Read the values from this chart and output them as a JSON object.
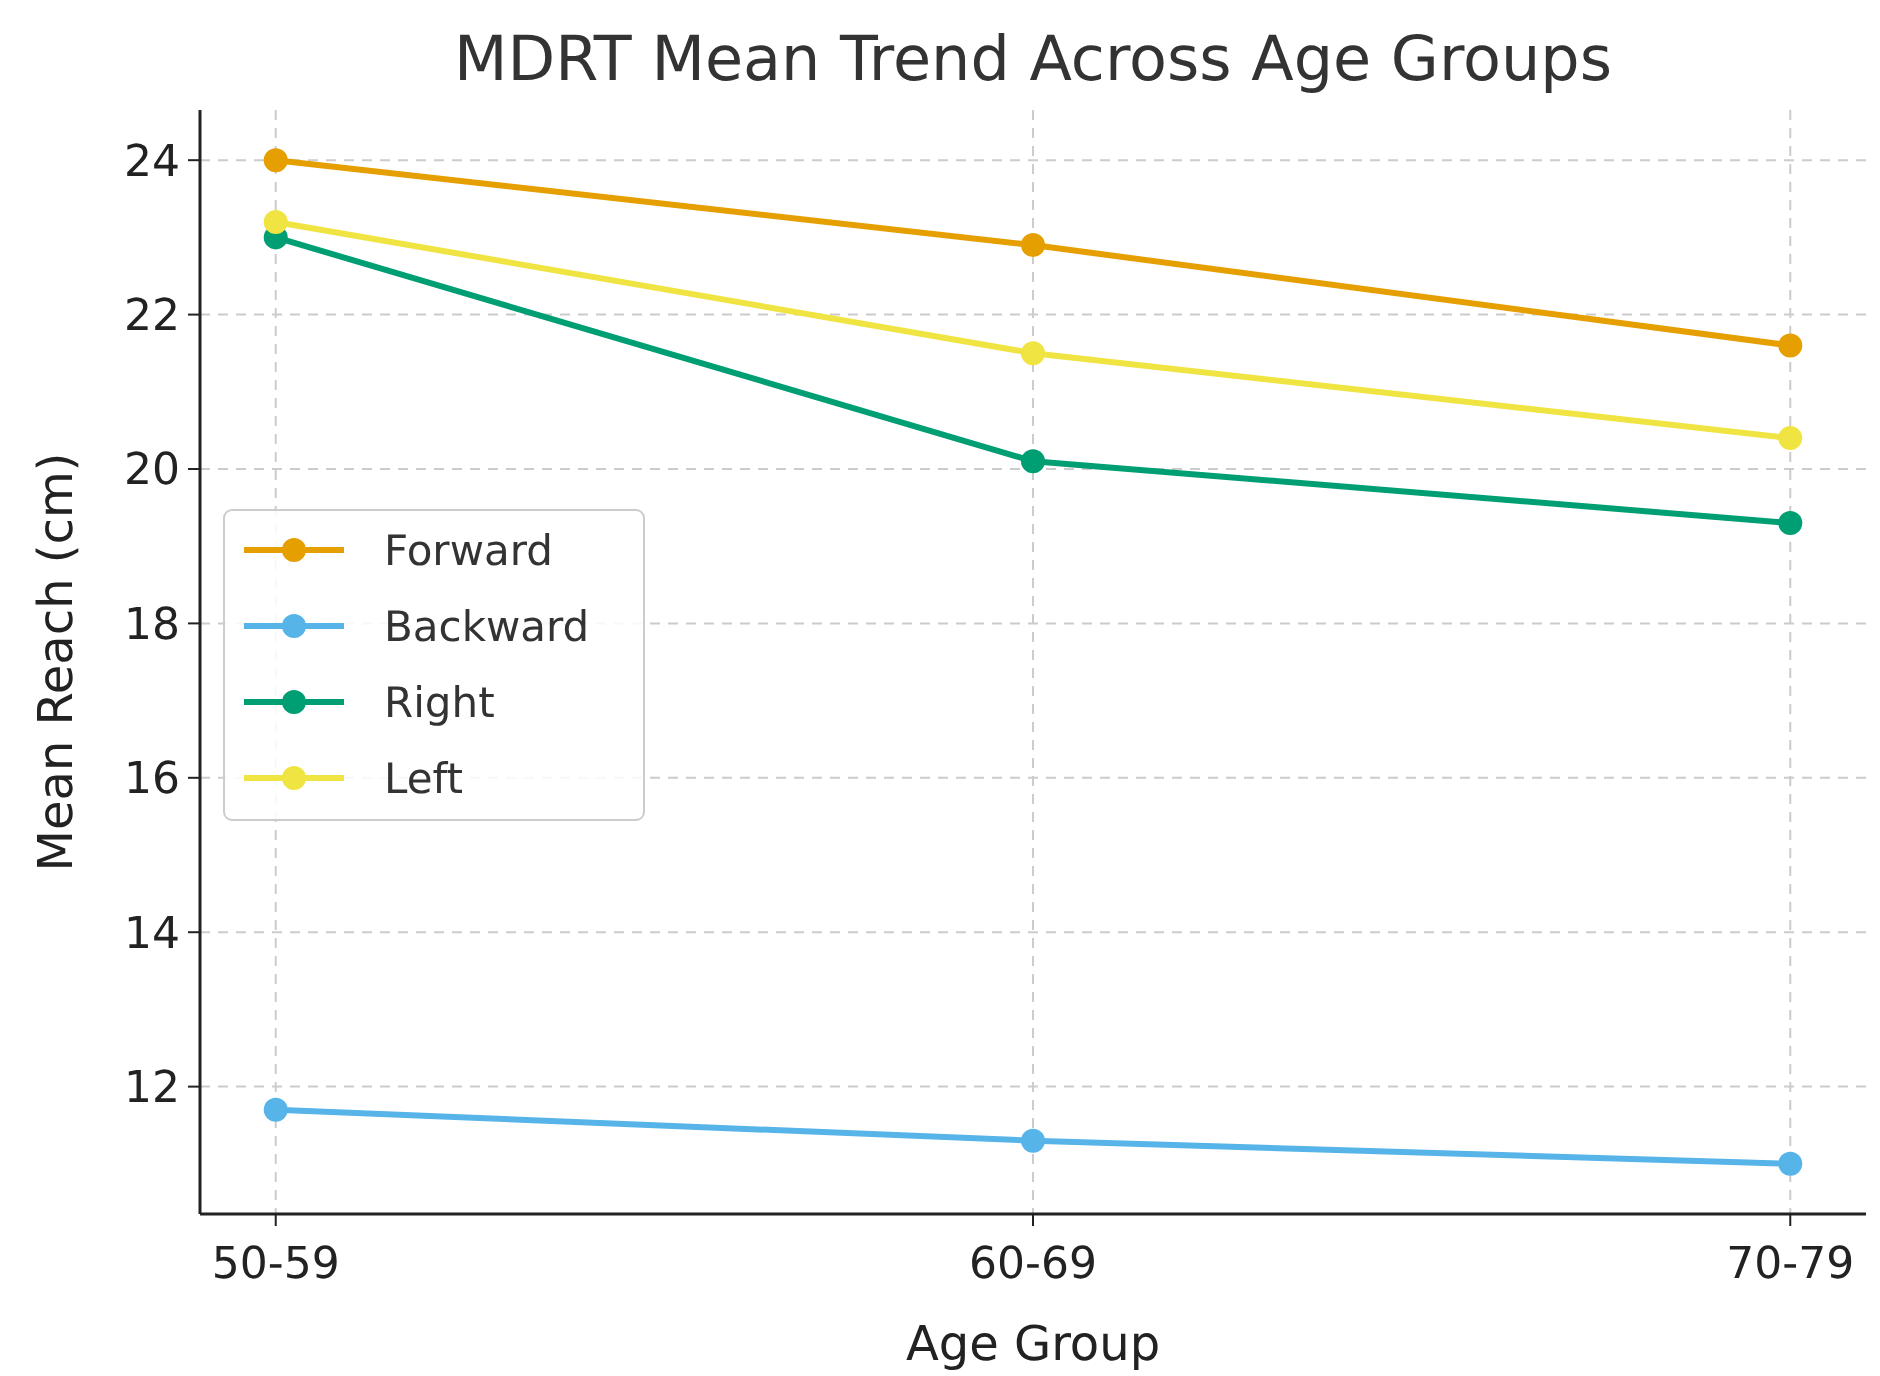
{
  "chart_data": {
    "type": "line",
    "title": "MDRT Mean Trend Across Age Groups",
    "xlabel": "Age Group",
    "ylabel": "Mean Reach (cm)",
    "categories": [
      "50-59",
      "60-69",
      "70-79"
    ],
    "series": [
      {
        "name": "Forward",
        "color": "#e69f00",
        "values": [
          24.0,
          22.9,
          21.6
        ]
      },
      {
        "name": "Backward",
        "color": "#56b4e9",
        "values": [
          11.7,
          11.3,
          11.0
        ]
      },
      {
        "name": "Right",
        "color": "#009e73",
        "values": [
          23.0,
          20.1,
          19.3
        ]
      },
      {
        "name": "Left",
        "color": "#f0e442",
        "values": [
          23.2,
          21.5,
          20.4
        ]
      }
    ],
    "ylim": [
      10.35,
      24.65
    ],
    "yticks": [
      12,
      14,
      16,
      18,
      20,
      22,
      24
    ],
    "grid": true,
    "legend": "left",
    "marker": "circle",
    "line_style": "solid"
  }
}
